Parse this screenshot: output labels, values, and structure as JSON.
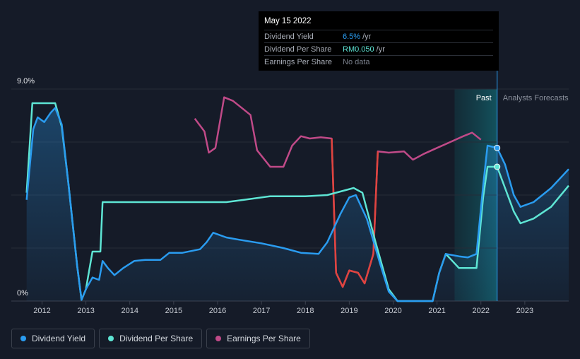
{
  "tooltip": {
    "date": "May 15 2022",
    "rows": [
      {
        "label": "Dividend Yield",
        "value": "6.5%",
        "unit": "/yr",
        "color": "#2a9cf0"
      },
      {
        "label": "Dividend Per Share",
        "value": "RM0.050",
        "unit": "/yr",
        "color": "#5ee5d4"
      },
      {
        "label": "Earnings Per Share",
        "value": "No data",
        "unit": "",
        "color": "#7a808c"
      }
    ]
  },
  "legend": [
    {
      "label": "Dividend Yield",
      "color": "#2a9cf0"
    },
    {
      "label": "Dividend Per Share",
      "color": "#5ee5d4"
    },
    {
      "label": "Earnings Per Share",
      "color": "#c04a88"
    }
  ],
  "chart_data": {
    "type": "line",
    "y_top_label": "9.0%",
    "y_bottom_label": "0%",
    "ylim": [
      0,
      9.0
    ],
    "xlim": [
      2011.3,
      2024.0
    ],
    "x_ticks": [
      "2012",
      "2013",
      "2014",
      "2015",
      "2016",
      "2017",
      "2018",
      "2019",
      "2020",
      "2021",
      "2022",
      "2023"
    ],
    "zones": {
      "past_label": "Past",
      "forecast_label": "Analysts Forecasts",
      "past_start": 2021.4,
      "forecast_start": 2022.37
    },
    "highlight_date": 2022.37,
    "grid": true,
    "series": [
      {
        "name": "Dividend Yield",
        "color": "#2a9cf0",
        "fill": true,
        "points": [
          [
            2011.65,
            4.3
          ],
          [
            2011.8,
            7.3
          ],
          [
            2011.9,
            7.8
          ],
          [
            2012.05,
            7.6
          ],
          [
            2012.2,
            8.0
          ],
          [
            2012.3,
            8.2
          ],
          [
            2012.45,
            7.5
          ],
          [
            2012.6,
            5.0
          ],
          [
            2012.8,
            1.5
          ],
          [
            2012.9,
            0.05
          ],
          [
            2013.0,
            0.5
          ],
          [
            2013.15,
            1.0
          ],
          [
            2013.3,
            0.9
          ],
          [
            2013.38,
            1.7
          ],
          [
            2013.5,
            1.4
          ],
          [
            2013.65,
            1.1
          ],
          [
            2013.85,
            1.4
          ],
          [
            2014.1,
            1.7
          ],
          [
            2014.35,
            1.75
          ],
          [
            2014.7,
            1.75
          ],
          [
            2014.9,
            2.05
          ],
          [
            2015.2,
            2.05
          ],
          [
            2015.6,
            2.2
          ],
          [
            2015.75,
            2.5
          ],
          [
            2015.9,
            2.9
          ],
          [
            2016.2,
            2.7
          ],
          [
            2016.5,
            2.6
          ],
          [
            2017.0,
            2.45
          ],
          [
            2017.5,
            2.25
          ],
          [
            2017.9,
            2.05
          ],
          [
            2018.3,
            2.0
          ],
          [
            2018.5,
            2.5
          ],
          [
            2018.8,
            3.7
          ],
          [
            2019.0,
            4.4
          ],
          [
            2019.15,
            4.5
          ],
          [
            2019.4,
            3.5
          ],
          [
            2019.7,
            1.6
          ],
          [
            2019.9,
            0.4
          ],
          [
            2020.1,
            0.0
          ],
          [
            2020.9,
            0.0
          ],
          [
            2021.05,
            1.2
          ],
          [
            2021.2,
            2.0
          ],
          [
            2021.5,
            1.9
          ],
          [
            2021.7,
            1.85
          ],
          [
            2021.9,
            2.0
          ],
          [
            2022.05,
            4.9
          ],
          [
            2022.15,
            6.6
          ],
          [
            2022.37,
            6.5
          ],
          [
            2022.55,
            5.8
          ],
          [
            2022.75,
            4.5
          ],
          [
            2022.9,
            4.0
          ],
          [
            2023.2,
            4.2
          ],
          [
            2023.6,
            4.8
          ],
          [
            2024.0,
            5.6
          ]
        ]
      },
      {
        "name": "Dividend Per Share",
        "color": "#5ee5d4",
        "fill": false,
        "points": [
          [
            2011.65,
            4.6
          ],
          [
            2011.78,
            8.4
          ],
          [
            2011.9,
            8.4
          ],
          [
            2012.3,
            8.4
          ],
          [
            2012.45,
            7.4
          ],
          [
            2012.6,
            5.0
          ],
          [
            2012.8,
            1.5
          ],
          [
            2012.9,
            0.05
          ],
          [
            2013.0,
            0.5
          ],
          [
            2013.15,
            2.1
          ],
          [
            2013.33,
            2.1
          ],
          [
            2013.38,
            4.2
          ],
          [
            2015.0,
            4.2
          ],
          [
            2016.2,
            4.2
          ],
          [
            2016.6,
            4.3
          ],
          [
            2017.2,
            4.45
          ],
          [
            2018.0,
            4.45
          ],
          [
            2018.5,
            4.5
          ],
          [
            2019.1,
            4.8
          ],
          [
            2019.3,
            4.6
          ],
          [
            2019.6,
            2.5
          ],
          [
            2019.9,
            0.5
          ],
          [
            2020.1,
            0.0
          ],
          [
            2020.9,
            0.0
          ],
          [
            2021.05,
            1.2
          ],
          [
            2021.2,
            2.0
          ],
          [
            2021.5,
            1.4
          ],
          [
            2021.9,
            1.4
          ],
          [
            2022.05,
            4.4
          ],
          [
            2022.15,
            5.7
          ],
          [
            2022.37,
            5.7
          ],
          [
            2022.55,
            4.8
          ],
          [
            2022.75,
            3.8
          ],
          [
            2022.9,
            3.3
          ],
          [
            2023.2,
            3.5
          ],
          [
            2023.6,
            4.0
          ],
          [
            2024.0,
            4.9
          ]
        ]
      },
      {
        "name": "Earnings Per Share",
        "color": "#c04a88",
        "fill": false,
        "points": [
          [
            2015.48,
            7.75
          ],
          [
            2015.7,
            7.2
          ],
          [
            2015.8,
            6.3
          ],
          [
            2015.95,
            6.5
          ],
          [
            2016.15,
            8.65
          ],
          [
            2016.35,
            8.5
          ],
          [
            2016.55,
            8.2
          ],
          [
            2016.75,
            7.9
          ],
          [
            2016.9,
            6.4
          ],
          [
            2017.2,
            5.7
          ],
          [
            2017.5,
            5.7
          ],
          [
            2017.7,
            6.6
          ],
          [
            2017.9,
            7.0
          ],
          [
            2018.1,
            6.9
          ],
          [
            2018.35,
            6.95
          ],
          [
            2018.6,
            6.9
          ],
          [
            2018.7,
            1.2
          ],
          [
            2018.85,
            0.6
          ],
          [
            2019.0,
            1.3
          ],
          [
            2019.2,
            1.2
          ],
          [
            2019.35,
            0.75
          ],
          [
            2019.55,
            2.0
          ],
          [
            2019.65,
            6.35
          ],
          [
            2019.9,
            6.3
          ],
          [
            2020.25,
            6.35
          ],
          [
            2020.45,
            6.0
          ],
          [
            2020.7,
            6.25
          ],
          [
            2021.0,
            6.5
          ],
          [
            2021.3,
            6.75
          ],
          [
            2021.6,
            7.0
          ],
          [
            2021.8,
            7.15
          ],
          [
            2022.0,
            6.85
          ]
        ]
      }
    ]
  }
}
